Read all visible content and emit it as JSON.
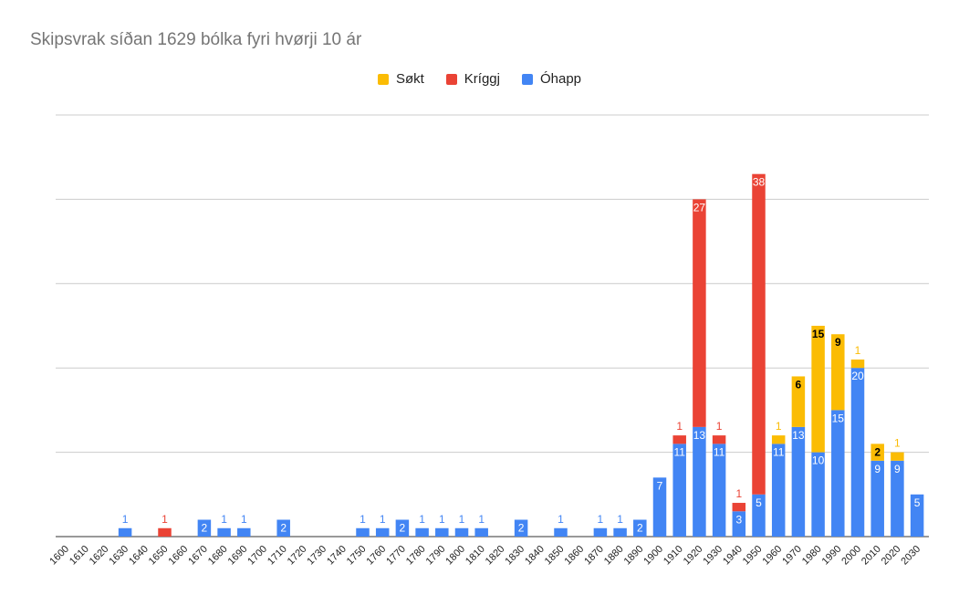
{
  "chart_data": {
    "type": "bar",
    "stacked": true,
    "title": "Skipsvrak síðan 1629 bólka fyri hvørji 10 ár",
    "xlabel": "",
    "ylabel": "",
    "ylim": [
      0,
      50
    ],
    "grid": true,
    "legend_position": "top",
    "categories": [
      "1600",
      "1610",
      "1620",
      "1630",
      "1640",
      "1650",
      "1660",
      "1670",
      "1680",
      "1690",
      "1700",
      "1710",
      "1720",
      "1730",
      "1740",
      "1750",
      "1760",
      "1770",
      "1780",
      "1790",
      "1800",
      "1810",
      "1820",
      "1830",
      "1840",
      "1850",
      "1860",
      "1870",
      "1880",
      "1890",
      "1900",
      "1910",
      "1920",
      "1930",
      "1940",
      "1950",
      "1960",
      "1970",
      "1980",
      "1990",
      "2000",
      "2010",
      "2020",
      "2030"
    ],
    "series": [
      {
        "name": "Óhapp",
        "color": "#4285f4",
        "values": [
          0,
          0,
          0,
          1,
          0,
          0,
          0,
          2,
          1,
          1,
          0,
          2,
          0,
          0,
          0,
          1,
          1,
          2,
          1,
          1,
          1,
          1,
          0,
          2,
          0,
          1,
          0,
          1,
          1,
          2,
          7,
          11,
          13,
          11,
          3,
          5,
          11,
          13,
          10,
          15,
          20,
          9,
          9,
          5
        ]
      },
      {
        "name": "Kríggj",
        "color": "#ea4335",
        "values": [
          0,
          0,
          0,
          0,
          0,
          1,
          0,
          0,
          0,
          0,
          0,
          0,
          0,
          0,
          0,
          0,
          0,
          0,
          0,
          0,
          0,
          0,
          0,
          0,
          0,
          0,
          0,
          0,
          0,
          0,
          0,
          1,
          27,
          1,
          1,
          38,
          0,
          0,
          0,
          0,
          0,
          0,
          0,
          0
        ]
      },
      {
        "name": "Søkt",
        "color": "#fbbc04",
        "values": [
          0,
          0,
          0,
          0,
          0,
          0,
          0,
          0,
          0,
          0,
          0,
          0,
          0,
          0,
          0,
          0,
          0,
          0,
          0,
          0,
          0,
          0,
          0,
          0,
          0,
          0,
          0,
          0,
          0,
          0,
          0,
          0,
          0,
          0,
          0,
          0,
          1,
          6,
          15,
          9,
          1,
          2,
          1,
          0
        ]
      }
    ],
    "legend_order": [
      "Søkt",
      "Kríggj",
      "Óhapp"
    ]
  }
}
